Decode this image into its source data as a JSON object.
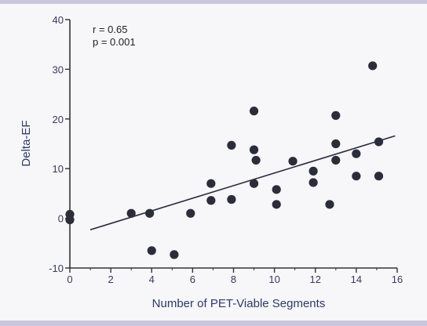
{
  "chart_data": {
    "type": "scatter",
    "title": "",
    "xlabel": "Number of PET-Viable Segments",
    "ylabel": "Delta-EF",
    "xlim": [
      0,
      16
    ],
    "ylim": [
      -10,
      40
    ],
    "xticks": [
      "0",
      "2",
      "4",
      "6",
      "8",
      "10",
      "12",
      "14",
      "16"
    ],
    "yticks": [
      "-10",
      "0",
      "10",
      "20",
      "30",
      "40"
    ],
    "xtick_values": [
      0,
      2,
      4,
      6,
      8,
      10,
      12,
      14,
      16
    ],
    "ytick_values": [
      -10,
      0,
      10,
      20,
      30,
      40
    ],
    "annotations": [
      "r = 0.65",
      "p = 0.001"
    ],
    "points": [
      {
        "x": 0,
        "y": 0.8
      },
      {
        "x": 0,
        "y": -0.3
      },
      {
        "x": 3,
        "y": 1
      },
      {
        "x": 3.9,
        "y": 1
      },
      {
        "x": 4,
        "y": -6.5
      },
      {
        "x": 5.1,
        "y": -7.3
      },
      {
        "x": 5.9,
        "y": 1
      },
      {
        "x": 6.9,
        "y": 7
      },
      {
        "x": 6.9,
        "y": 3.6
      },
      {
        "x": 7.9,
        "y": 14.7
      },
      {
        "x": 7.9,
        "y": 3.8
      },
      {
        "x": 9,
        "y": 21.6
      },
      {
        "x": 9,
        "y": 13.8
      },
      {
        "x": 9.1,
        "y": 11.7
      },
      {
        "x": 9,
        "y": 7
      },
      {
        "x": 10.1,
        "y": 5.8
      },
      {
        "x": 10.1,
        "y": 2.8
      },
      {
        "x": 10.9,
        "y": 11.5
      },
      {
        "x": 11.9,
        "y": 9.5
      },
      {
        "x": 11.9,
        "y": 7.2
      },
      {
        "x": 12.7,
        "y": 2.8
      },
      {
        "x": 13,
        "y": 20.7
      },
      {
        "x": 13,
        "y": 15
      },
      {
        "x": 13,
        "y": 11.7
      },
      {
        "x": 14,
        "y": 13
      },
      {
        "x": 14,
        "y": 8.5
      },
      {
        "x": 14.8,
        "y": 30.7
      },
      {
        "x": 15.1,
        "y": 15.4
      },
      {
        "x": 15.1,
        "y": 8.5
      }
    ],
    "fit_line": {
      "x": [
        1,
        15.9
      ],
      "y": [
        -2.3,
        16.6
      ]
    },
    "grid": false,
    "legend": "none"
  }
}
